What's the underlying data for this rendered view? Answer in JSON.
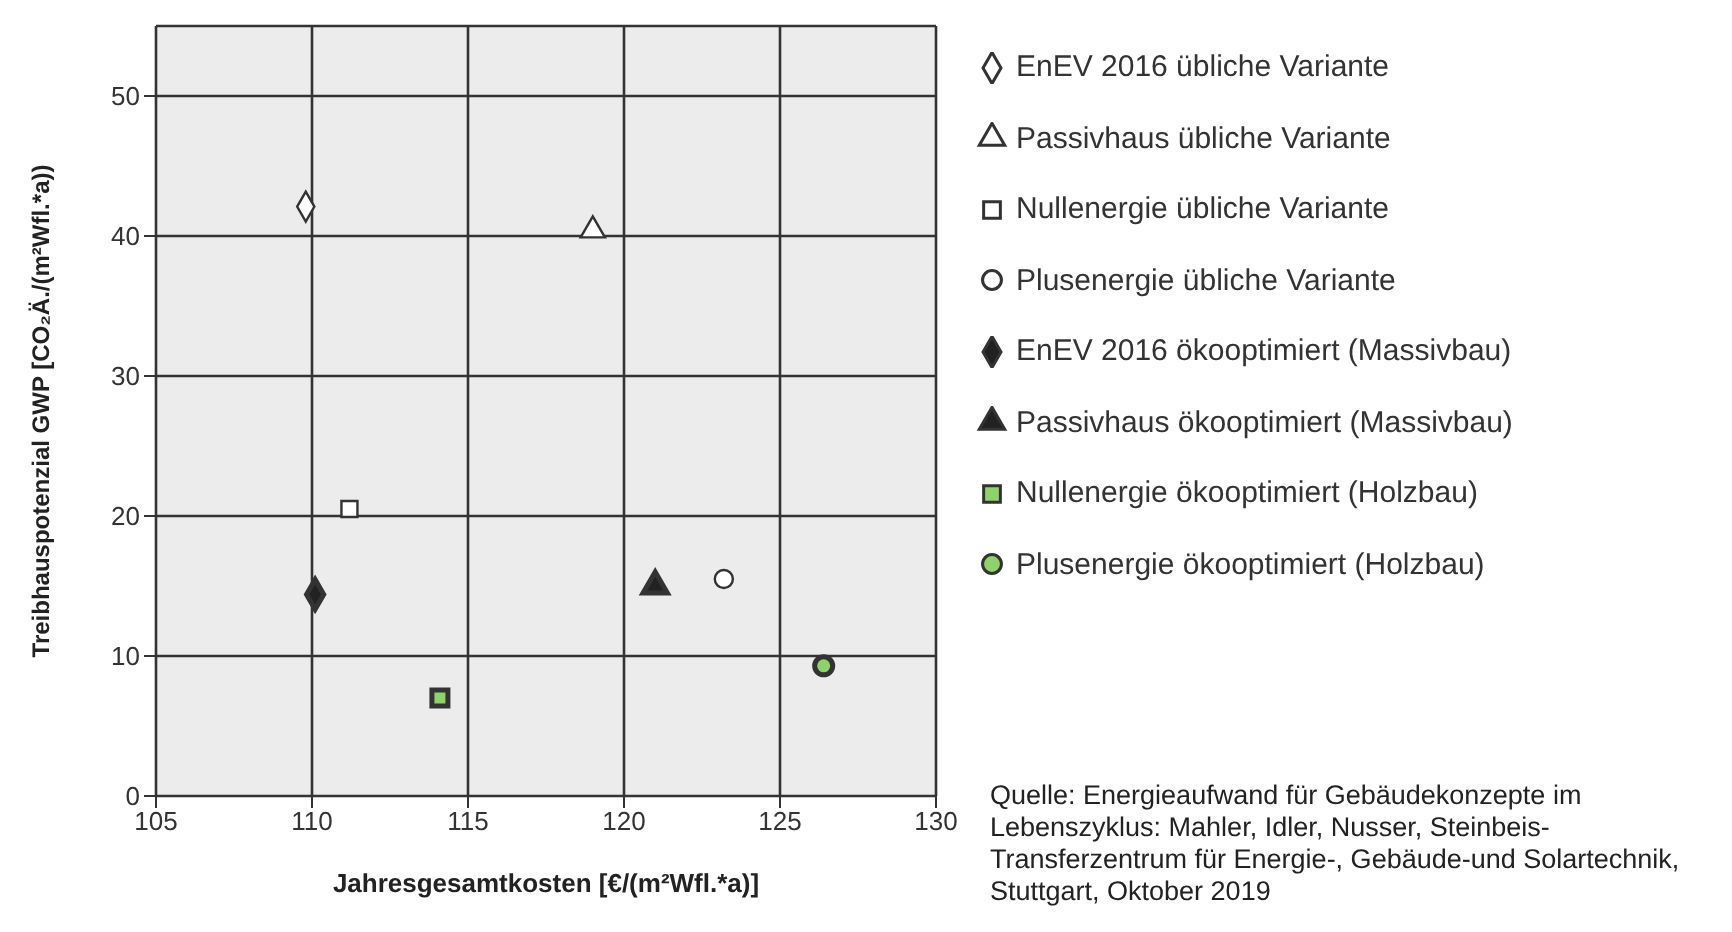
{
  "chart_data": {
    "type": "scatter",
    "xlabel": "Jahresgesamtkosten  [€/(m²Wfl.*a)]",
    "ylabel": "Treibhauspotenzial  GWP [CO₂Ä./(m²Wfl.*a))",
    "xlim": [
      105,
      130
    ],
    "xticks": [
      105,
      110,
      115,
      120,
      125,
      130
    ],
    "ylim": [
      0,
      55
    ],
    "yticks": [
      0,
      10,
      20,
      30,
      40,
      50
    ],
    "grid": true,
    "legend": "right",
    "series": [
      {
        "name": "EnEV 2016 übliche Variante",
        "color": "#ffffff",
        "marker": "diamond",
        "x": [
          109.8
        ],
        "values": [
          42.1
        ]
      },
      {
        "name": "Passivhaus übliche Variante",
        "color": "#ffffff",
        "marker": "triangle",
        "x": [
          119.0
        ],
        "values": [
          40.4
        ]
      },
      {
        "name": "Nullenergie übliche Variante",
        "color": "#ffffff",
        "marker": "square",
        "x": [
          111.2
        ],
        "values": [
          20.5
        ]
      },
      {
        "name": "Plusenergie übliche Variante",
        "color": "#ffffff",
        "marker": "circle",
        "x": [
          123.2
        ],
        "values": [
          15.5
        ]
      },
      {
        "name": "EnEV 2016 ökooptimiert (Massivbau)",
        "color": "#222222",
        "marker": "diamond",
        "x": [
          110.1
        ],
        "values": [
          14.4
        ]
      },
      {
        "name": "Passivhaus ökooptimiert (Massivbau)",
        "color": "#222222",
        "marker": "triangle",
        "x": [
          121.0
        ],
        "values": [
          15.0
        ]
      },
      {
        "name": "Nullenergie ökooptimiert (Holzbau)",
        "color": "#8fd16a",
        "marker": "square",
        "x": [
          114.1
        ],
        "values": [
          7.0
        ]
      },
      {
        "name": "Plusenergie ökooptimiert (Holzbau)",
        "color": "#8fd16a",
        "marker": "circle",
        "x": [
          126.4
        ],
        "values": [
          9.3
        ]
      }
    ],
    "annotations": [
      "Quelle: Energieaufwand für Gebäudekonzepte im Lebenszyklus: Mahler, Idler, Nusser, Steinbeis-Transferzentrum für Energie-, Gebäude-und Solartechnik, Stuttgart, Oktober 2019"
    ]
  }
}
